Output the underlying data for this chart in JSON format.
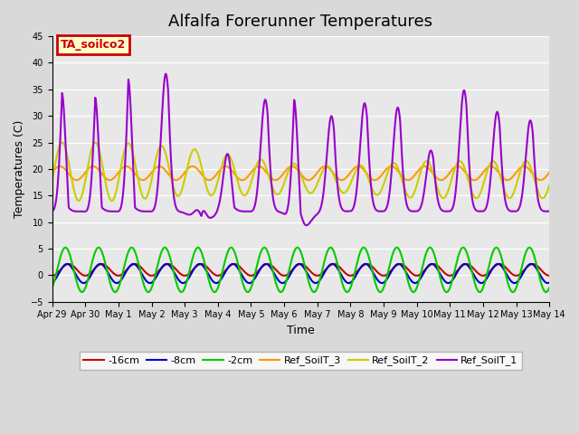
{
  "title": "Alfalfa Forerunner Temperatures",
  "xlabel": "Time",
  "ylabel": "Temperatures (C)",
  "ylim": [
    -5,
    45
  ],
  "xlim_start": 0,
  "xlim_end": 15,
  "xtick_labels": [
    "Apr 29",
    "Apr 30",
    "May 1",
    "May 2",
    "May 3",
    "May 4",
    "May 5",
    "May 6",
    "May 7",
    "May 8",
    "May 9",
    "May 10",
    "May 11",
    "May 12",
    "May 13",
    "May 14"
  ],
  "annotation_text": "TA_soilco2",
  "annotation_fg": "#cc0000",
  "annotation_bg": "#ffffcc",
  "annotation_edge": "#cc0000",
  "plot_bg": "#e8e8e8",
  "fig_bg": "#d9d9d9",
  "series": {
    "neg16cm": {
      "label": "-16cm",
      "color": "#cc0000",
      "lw": 1.5
    },
    "neg8cm": {
      "label": "-8cm",
      "color": "#0000cc",
      "lw": 1.5
    },
    "neg2cm": {
      "label": "-2cm",
      "color": "#00cc00",
      "lw": 1.5
    },
    "ref3": {
      "label": "Ref_SoilT_3",
      "color": "#ff9900",
      "lw": 1.5
    },
    "ref2": {
      "label": "Ref_SoilT_2",
      "color": "#cccc00",
      "lw": 1.5
    },
    "ref1": {
      "label": "Ref_SoilT_1",
      "color": "#9900cc",
      "lw": 1.5
    }
  },
  "yticks": [
    -5,
    0,
    5,
    10,
    15,
    20,
    25,
    30,
    35,
    40,
    45
  ],
  "grid_color": "#ffffff",
  "legend_ncol": 6,
  "legend_fontsize": 8,
  "title_fontsize": 13,
  "axis_fontsize": 9,
  "tick_fontsize": 7
}
